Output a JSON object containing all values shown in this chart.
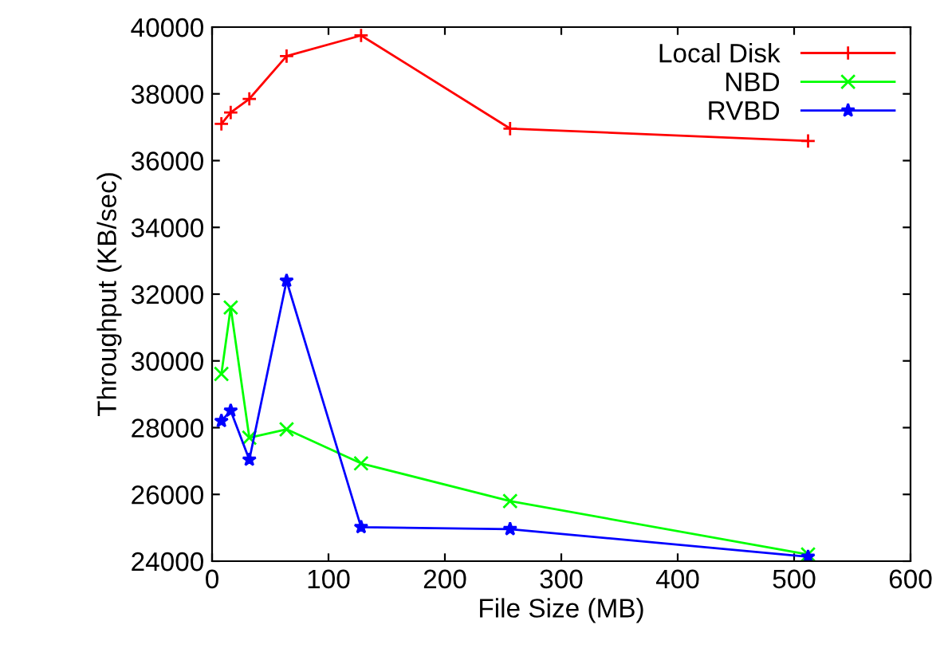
{
  "chart_data": {
    "type": "line",
    "xlabel": "File Size (MB)",
    "ylabel": "Throughput (KB/sec)",
    "xlim": [
      0,
      600
    ],
    "xticks": [
      0,
      100,
      200,
      300,
      400,
      500,
      600
    ],
    "ylim": [
      24000,
      40000
    ],
    "yticks": [
      24000,
      26000,
      28000,
      30000,
      32000,
      34000,
      36000,
      38000,
      40000
    ],
    "grid": false,
    "legend": "top right",
    "line_style": "solid",
    "series": [
      {
        "name": "Local Disk",
        "color": "#ff0000",
        "marker": "plus",
        "x": [
          8,
          16,
          32,
          64,
          128,
          256,
          512
        ],
        "values": [
          37100,
          37440,
          37850,
          39130,
          39750,
          36960,
          36590
        ]
      },
      {
        "name": "NBD",
        "color": "#00ff00",
        "marker": "cross",
        "x": [
          8,
          16,
          32,
          64,
          128,
          256,
          512
        ],
        "values": [
          29610,
          31600,
          27700,
          27950,
          26930,
          25800,
          24200
        ]
      },
      {
        "name": "RVBD",
        "color": "#0000ff",
        "marker": "star",
        "x": [
          8,
          16,
          32,
          64,
          128,
          256,
          512
        ],
        "values": [
          28200,
          28510,
          27040,
          32400,
          25020,
          24960,
          24130
        ]
      }
    ]
  }
}
